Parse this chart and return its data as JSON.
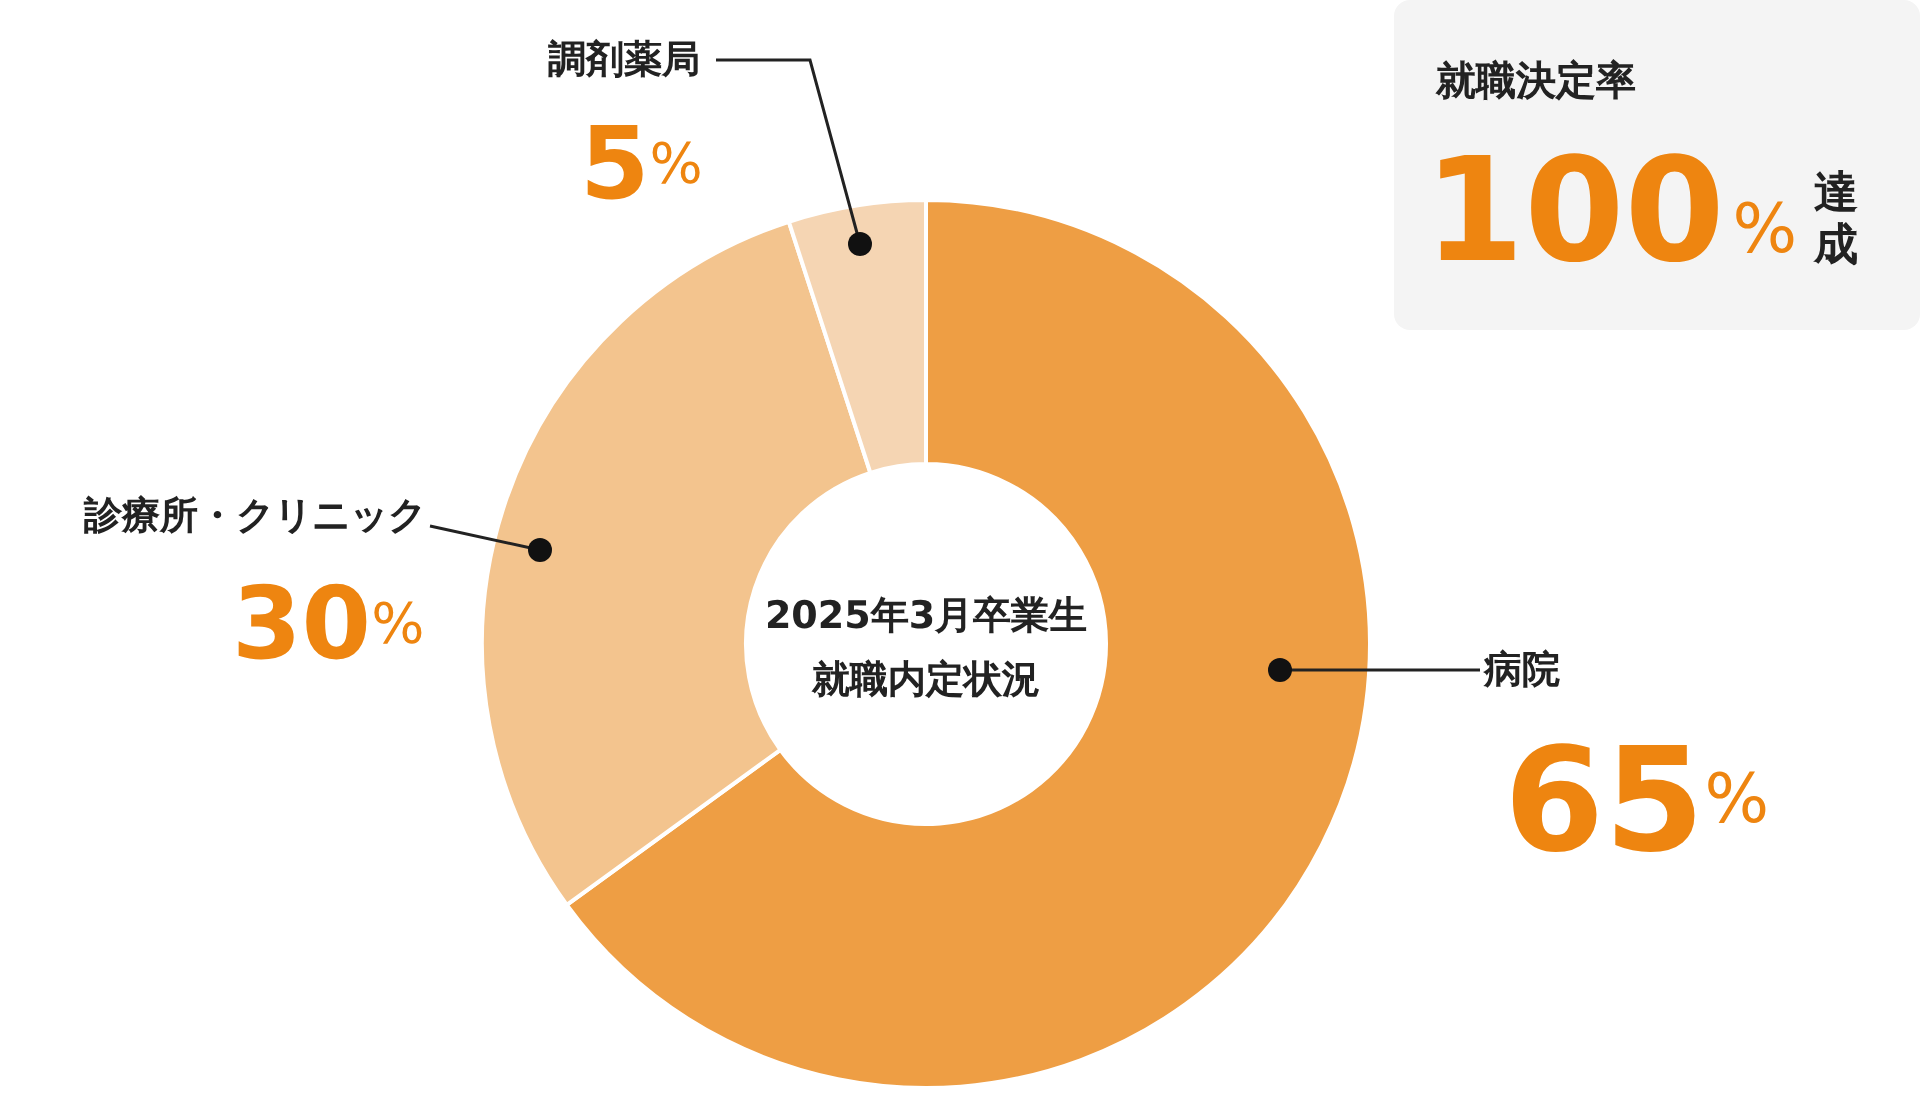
{
  "chart_data": {
    "type": "donut",
    "title": "2025年3月卒業生",
    "subtitle": "就職内定状況",
    "categories": [
      "病院",
      "診療所・クリニック",
      "調剤薬局"
    ],
    "values": [
      65,
      30,
      5
    ],
    "value_labels": [
      "65%",
      "30%",
      "5%"
    ],
    "colors": [
      "#ee9e44",
      "#f3c48e",
      "#f5d5b3"
    ],
    "legend": false,
    "annotations": [
      "就職決定率",
      "100%",
      "達成"
    ]
  }
}
